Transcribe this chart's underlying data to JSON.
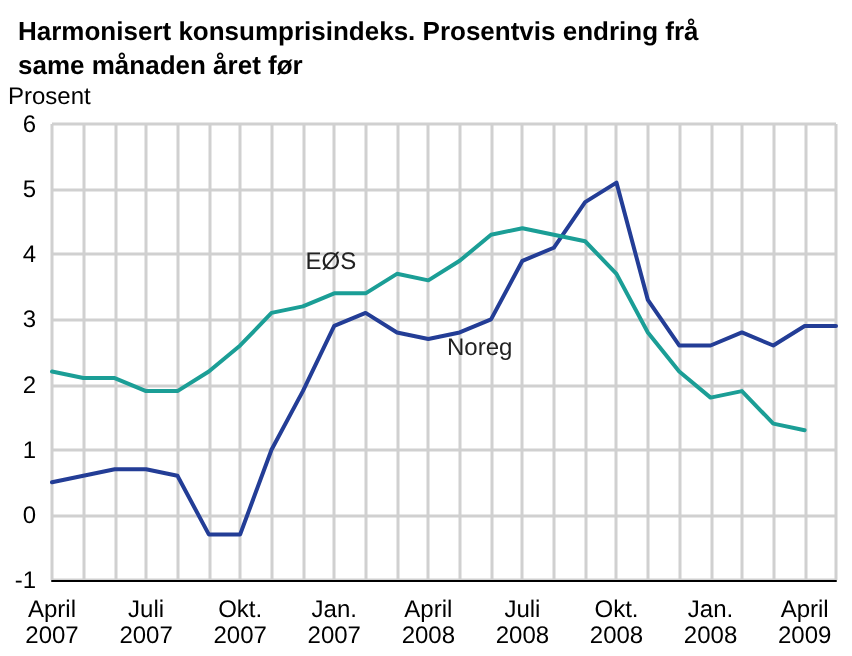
{
  "chart_data": {
    "type": "line",
    "title": "Harmonisert konsumprisindeks. Prosentvis endring frå same månaden året før",
    "ylabel": "Prosent",
    "categories": [
      "April 2007",
      null,
      null,
      "Juli 2007",
      null,
      null,
      "Okt. 2007",
      null,
      null,
      "Jan. 2007",
      null,
      null,
      "April 2008",
      null,
      null,
      "Juli 2008",
      null,
      null,
      "Okt. 2008",
      null,
      null,
      "Jan. 2008",
      null,
      null,
      "April 2009",
      null
    ],
    "series": [
      {
        "name": "Noreg",
        "color": "#233d96",
        "values": [
          0.5,
          0.6,
          0.7,
          0.7,
          0.6,
          -0.3,
          -0.3,
          1.0,
          1.9,
          2.9,
          3.1,
          2.8,
          2.7,
          2.8,
          3.0,
          3.9,
          4.1,
          4.8,
          5.1,
          3.3,
          2.6,
          2.6,
          2.8,
          2.6,
          2.9,
          2.9
        ]
      },
      {
        "name": "EØS",
        "color": "#1b9e96",
        "values": [
          2.2,
          2.1,
          2.1,
          1.9,
          1.9,
          2.2,
          2.6,
          3.1,
          3.2,
          3.4,
          3.4,
          3.7,
          3.6,
          3.9,
          4.3,
          4.4,
          4.3,
          4.2,
          3.7,
          2.8,
          2.2,
          1.8,
          1.9,
          1.4,
          1.3,
          null
        ]
      }
    ],
    "ylim": [
      -1,
      6
    ],
    "yticks": [
      -1,
      0,
      1,
      2,
      3,
      4,
      5,
      6
    ],
    "grid": true,
    "legend": false,
    "marker": "none",
    "line_style": "solid"
  }
}
